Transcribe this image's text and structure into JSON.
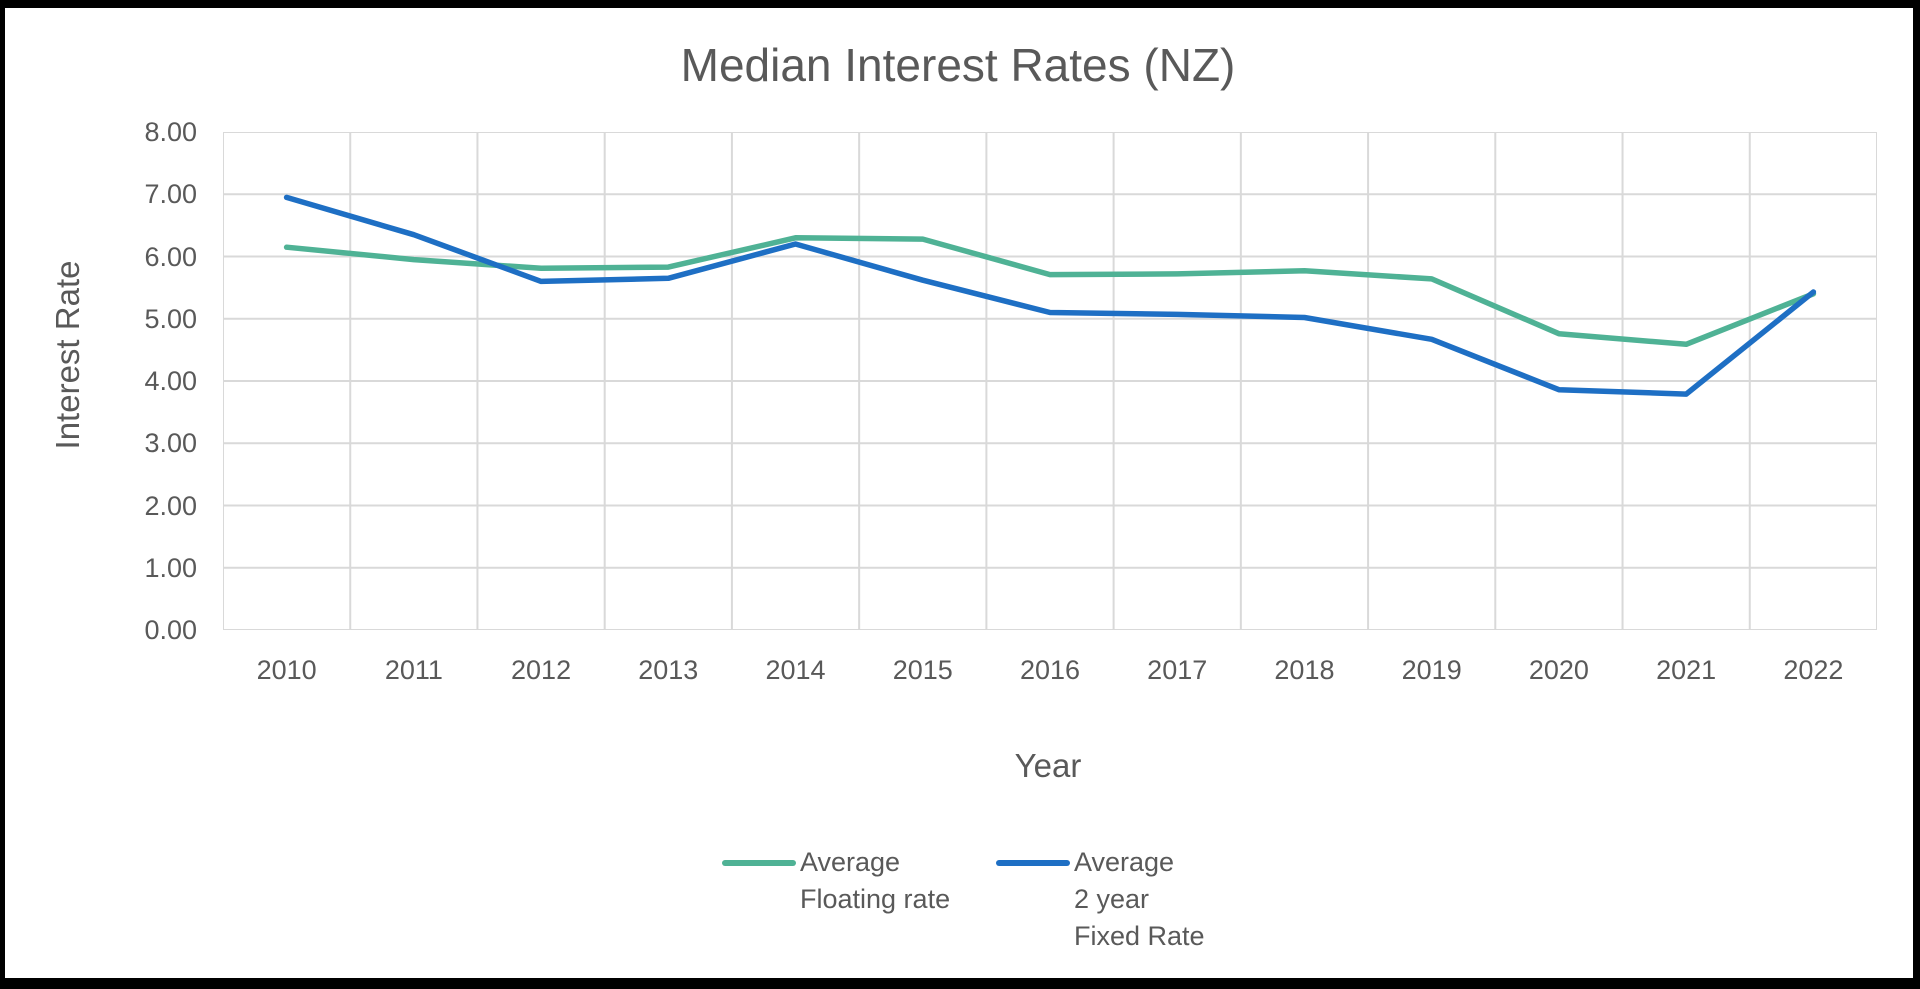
{
  "frame": {
    "border_color": "#000000",
    "background_color": "#ffffff"
  },
  "chart_data": {
    "type": "line",
    "title": "Median Interest Rates (NZ)",
    "xlabel": "Year",
    "ylabel": "Interest Rate",
    "categories": [
      "2010",
      "2011",
      "2012",
      "2013",
      "2014",
      "2015",
      "2016",
      "2017",
      "2018",
      "2019",
      "2020",
      "2021",
      "2022"
    ],
    "series": [
      {
        "name": "Average Floating rate",
        "legend_label": "Average\nFloating rate",
        "color": "#4FB295",
        "values": [
          6.15,
          5.95,
          5.81,
          5.83,
          6.3,
          6.28,
          5.71,
          5.72,
          5.77,
          5.64,
          4.76,
          4.59,
          5.4
        ]
      },
      {
        "name": "Average 2 year Fixed Rate",
        "legend_label": "Average\n2 year\nFixed Rate",
        "color": "#1E6FC4",
        "values": [
          6.95,
          6.35,
          5.6,
          5.65,
          6.2,
          5.62,
          5.1,
          5.07,
          5.02,
          4.67,
          3.86,
          3.79,
          5.43
        ]
      }
    ],
    "y_ticks": [
      "8.00",
      "7.00",
      "6.00",
      "5.00",
      "4.00",
      "3.00",
      "2.00",
      "1.00",
      "0.00"
    ],
    "ylim": [
      0,
      8
    ],
    "grid": true,
    "gridline_color": "#D9D9D9",
    "text_color": "#595959",
    "legend_position": "bottom"
  }
}
